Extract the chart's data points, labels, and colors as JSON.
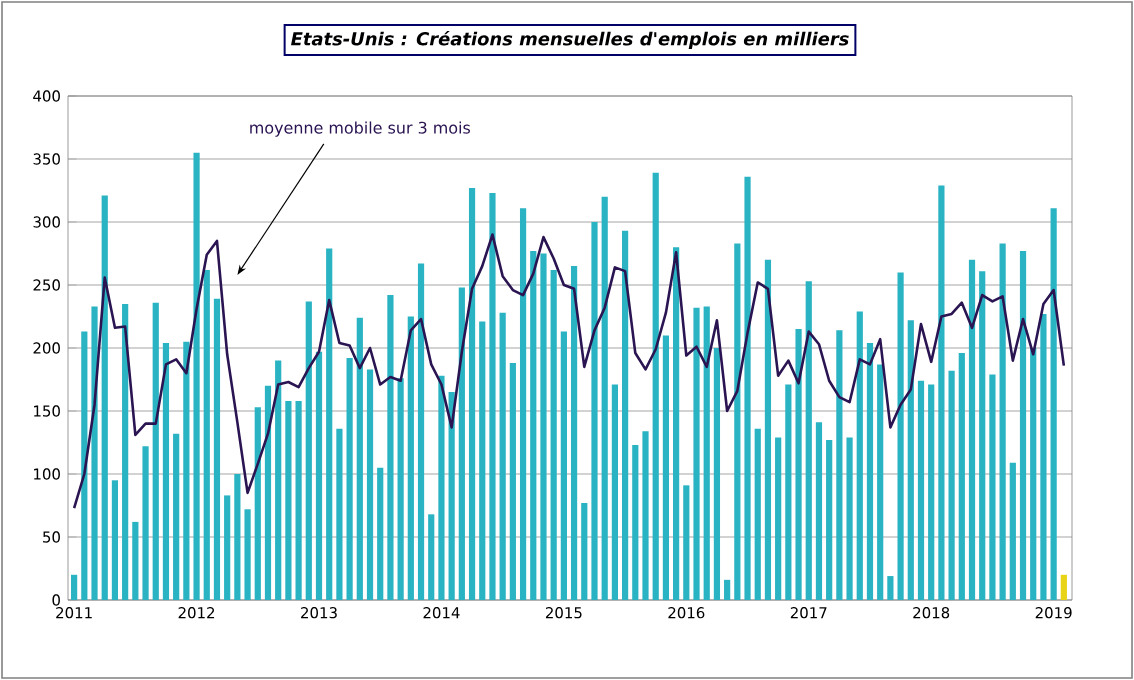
{
  "chart_data": {
    "type": "bar",
    "title": "*Etats-Unis : Créations mensuelles d'emplois en milliers*",
    "categories": [
      "2011",
      null,
      null,
      null,
      null,
      null,
      null,
      null,
      null,
      null,
      null,
      null,
      "2012",
      null,
      null,
      null,
      null,
      null,
      null,
      null,
      null,
      null,
      null,
      null,
      "2013",
      null,
      null,
      null,
      null,
      null,
      null,
      null,
      null,
      null,
      null,
      null,
      "2014",
      null,
      null,
      null,
      null,
      null,
      null,
      null,
      null,
      null,
      null,
      null,
      "2015",
      null,
      null,
      null,
      null,
      null,
      null,
      null,
      null,
      null,
      null,
      null,
      "2016",
      null,
      null,
      null,
      null,
      null,
      null,
      null,
      null,
      null,
      null,
      null,
      "2017",
      null,
      null,
      null,
      null,
      null,
      null,
      null,
      null,
      null,
      null,
      null,
      "2018",
      null,
      null,
      null,
      null,
      null,
      null,
      null,
      null,
      null,
      null,
      null,
      "2019",
      null
    ],
    "series": [
      {
        "colors": [
          "#2ab3c2",
          "#2ab3c2",
          "#2ab3c2",
          "#2ab3c2",
          "#2ab3c2",
          "#2ab3c2",
          "#2ab3c2",
          "#2ab3c2",
          "#2ab3c2",
          "#2ab3c2",
          "#2ab3c2",
          "#2ab3c2",
          "#2ab3c2",
          "#2ab3c2",
          "#2ab3c2",
          "#2ab3c2",
          "#2ab3c2",
          "#2ab3c2",
          "#2ab3c2",
          "#2ab3c2",
          "#2ab3c2",
          "#2ab3c2",
          "#2ab3c2",
          "#2ab3c2",
          "#2ab3c2",
          "#2ab3c2",
          "#2ab3c2",
          "#2ab3c2",
          "#2ab3c2",
          "#2ab3c2",
          "#2ab3c2",
          "#2ab3c2",
          "#2ab3c2",
          "#2ab3c2",
          "#2ab3c2",
          "#2ab3c2",
          "#2ab3c2",
          "#2ab3c2",
          "#2ab3c2",
          "#2ab3c2",
          "#2ab3c2",
          "#2ab3c2",
          "#2ab3c2",
          "#2ab3c2",
          "#2ab3c2",
          "#2ab3c2",
          "#2ab3c2",
          "#2ab3c2",
          "#2ab3c2",
          "#2ab3c2",
          "#2ab3c2",
          "#2ab3c2",
          "#2ab3c2",
          "#2ab3c2",
          "#2ab3c2",
          "#2ab3c2",
          "#2ab3c2",
          "#2ab3c2",
          "#2ab3c2",
          "#2ab3c2",
          "#2ab3c2",
          "#2ab3c2",
          "#2ab3c2",
          "#2ab3c2",
          "#2ab3c2",
          "#2ab3c2",
          "#2ab3c2",
          "#2ab3c2",
          "#2ab3c2",
          "#2ab3c2",
          "#2ab3c2",
          "#2ab3c2",
          "#2ab3c2",
          "#2ab3c2",
          "#2ab3c2",
          "#2ab3c2",
          "#2ab3c2",
          "#2ab3c2",
          "#2ab3c2",
          "#2ab3c2",
          "#2ab3c2",
          "#2ab3c2",
          "#2ab3c2",
          "#2ab3c2",
          "#2ab3c2",
          "#2ab3c2",
          "#2ab3c2",
          "#2ab3c2",
          "#2ab3c2",
          "#2ab3c2",
          "#2ab3c2",
          "#2ab3c2",
          "#2ab3c2",
          "#2ab3c2",
          "#2ab3c2",
          "#2ab3c2",
          "#2ab3c2",
          "#e8d414"
        ],
        "values": [
          20,
          213,
          233,
          321,
          95,
          235,
          62,
          122,
          236,
          204,
          132,
          205,
          355,
          262,
          239,
          83,
          100,
          72,
          153,
          170,
          190,
          158,
          158,
          237,
          197,
          279,
          136,
          192,
          224,
          183,
          105,
          242,
          176,
          225,
          267,
          68,
          178,
          165,
          248,
          327,
          221,
          323,
          228,
          188,
          311,
          277,
          275,
          262,
          213,
          265,
          77,
          300,
          320,
          171,
          293,
          123,
          134,
          339,
          210,
          280,
          91,
          232,
          233,
          200,
          16,
          283,
          336,
          136,
          270,
          129,
          171,
          215,
          253,
          141,
          127,
          214,
          129,
          229,
          204,
          187,
          19,
          260,
          222,
          174,
          171,
          329,
          182,
          196,
          270,
          261,
          179,
          283,
          109,
          277,
          200,
          227,
          311,
          20
        ]
      },
      {
        "type": "line",
        "name": "moyenne mobile sur 3 mois",
        "color": "#2a1452",
        "values": [
          73,
          100,
          155,
          256,
          216,
          217,
          131,
          140,
          140,
          187,
          191,
          180,
          231,
          274,
          285,
          195,
          141,
          85,
          108,
          132,
          171,
          173,
          169,
          184,
          197,
          238,
          204,
          202,
          184,
          200,
          171,
          177,
          174,
          214,
          223,
          187,
          171,
          137,
          197,
          247,
          265,
          290,
          257,
          246,
          242,
          259,
          288,
          271,
          250,
          247,
          185,
          214,
          232,
          264,
          261,
          196,
          183,
          199,
          228,
          276,
          194,
          201,
          185,
          222,
          150,
          166,
          212,
          252,
          247,
          178,
          190,
          172,
          213,
          203,
          174,
          161,
          157,
          191,
          187,
          207,
          137,
          155,
          167,
          219,
          189,
          225,
          227,
          236,
          216,
          242,
          237,
          241,
          190,
          223,
          195,
          235,
          246,
          186
        ]
      }
    ],
    "ylim": [
      0,
      400
    ],
    "yticks": [
      0,
      50,
      100,
      150,
      200,
      250,
      300,
      350,
      400
    ],
    "grid": "y"
  }
}
